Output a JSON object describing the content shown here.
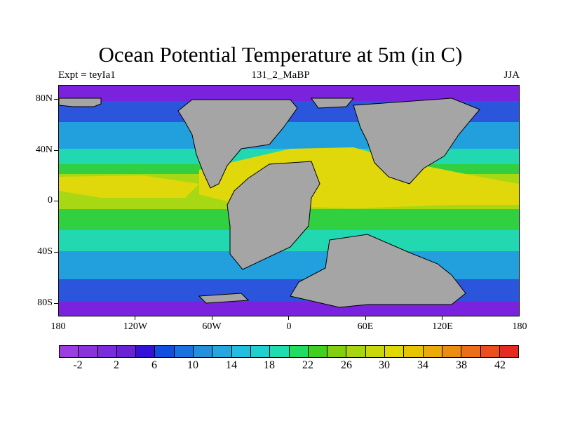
{
  "title": "Ocean Potential Temperature at 5m (in C)",
  "subtitle_left": "Expt = teyIa1",
  "subtitle_center": "131_2_MaBP",
  "subtitle_right": "JJA",
  "y_ticks": [
    "80N",
    "40N",
    "0",
    "40S",
    "80S"
  ],
  "x_ticks": [
    "180",
    "120W",
    "60W",
    "0",
    "60E",
    "120E",
    "180"
  ],
  "colorbar": {
    "colors": [
      "#9b3de0",
      "#8a33dd",
      "#7a2bdb",
      "#6a22d7",
      "#3311d6",
      "#1150df",
      "#1a71e0",
      "#2290dd",
      "#26a6de",
      "#21bee0",
      "#1ed0d0",
      "#21dcb0",
      "#20dc60",
      "#40d020",
      "#80d010",
      "#a8d410",
      "#c8d80a",
      "#e0d800",
      "#e6c400",
      "#eaaa08",
      "#ec8c10",
      "#ec6e18",
      "#ec4e1e",
      "#e62a20"
    ],
    "labels": [
      "-2",
      "2",
      "6",
      "10",
      "14",
      "18",
      "22",
      "26",
      "30",
      "34",
      "38",
      "42"
    ]
  },
  "map_colors": {
    "land": "#a5a5a5",
    "polar": "#7a22dd",
    "sub_polar": "#2a55dc",
    "temperate": "#22a0de",
    "warm_temperate": "#22d8b0",
    "subtropical": "#30d040",
    "tropical": "#a8d814",
    "hot": "#e0d80a"
  }
}
